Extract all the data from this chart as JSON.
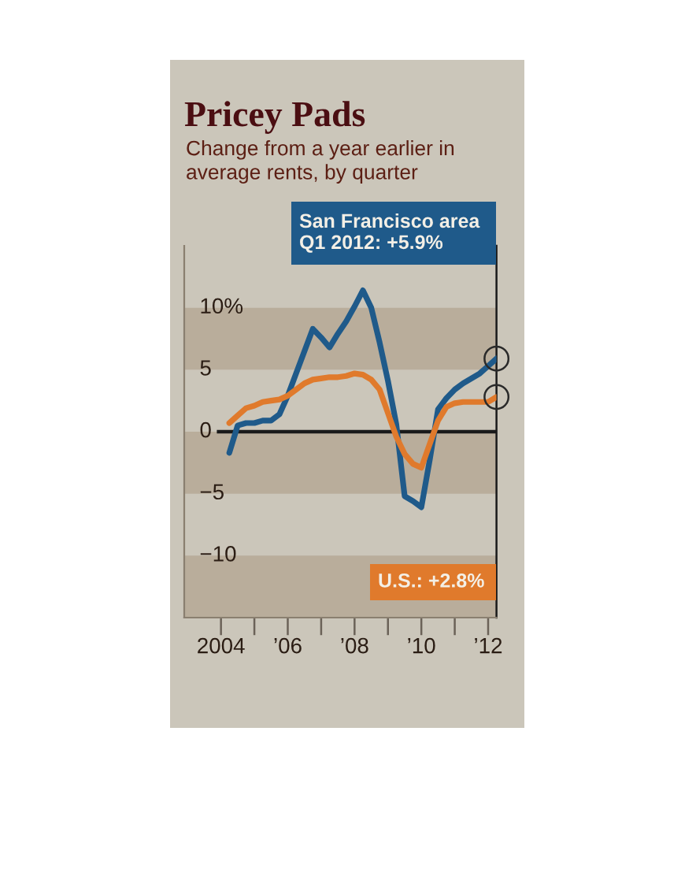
{
  "chart_data": {
    "type": "line",
    "title": "Pricey Pads",
    "subtitle": "Change from a year earlier in\naverage rents, by quarter",
    "x": [
      2004.25,
      2004.5,
      2004.75,
      2005,
      2005.25,
      2005.5,
      2005.75,
      2006,
      2006.25,
      2006.5,
      2006.75,
      2007,
      2007.25,
      2007.5,
      2007.75,
      2008,
      2008.25,
      2008.5,
      2008.75,
      2009,
      2009.25,
      2009.5,
      2009.75,
      2010,
      2010.25,
      2010.5,
      2010.75,
      2011,
      2011.25,
      2011.5,
      2011.75,
      2012,
      2012.25
    ],
    "series": [
      {
        "color": "#1f5a8a",
        "values": [
          -1.7,
          0.5,
          0.7,
          0.7,
          0.9,
          0.9,
          1.4,
          2.9,
          4.7,
          6.5,
          8.3,
          7.6,
          6.8,
          7.9,
          8.9,
          10.1,
          11.4,
          10.0,
          7.2,
          4.1,
          0.6,
          -5.2,
          -5.6,
          -6.1,
          -2.3,
          1.8,
          2.7,
          3.4,
          3.9,
          4.3,
          4.7,
          5.3,
          5.9
        ]
      },
      {
        "color": "#e07a2c",
        "values": [
          0.7,
          1.3,
          1.9,
          2.1,
          2.4,
          2.5,
          2.6,
          2.9,
          3.4,
          3.9,
          4.2,
          4.3,
          4.4,
          4.4,
          4.5,
          4.7,
          4.6,
          4.2,
          3.4,
          1.5,
          -0.4,
          -1.8,
          -2.6,
          -2.9,
          -1.0,
          0.9,
          2.0,
          2.3,
          2.4,
          2.4,
          2.4,
          2.4,
          2.8
        ]
      },
      {
        "type": "scatter",
        "x": [
          2012.25,
          2012.25
        ],
        "color": "#2a2a2a",
        "marker": "circle",
        "values": [
          5.9,
          2.8
        ]
      }
    ],
    "xlim": [
      2002.9,
      2012.25
    ],
    "xticks": [
      2004,
      {
        "value": 2005,
        "label": null
      },
      {
        "value": 2006,
        "label": "’06"
      },
      {
        "value": 2007,
        "label": null
      },
      {
        "value": 2008,
        "label": "’08"
      },
      {
        "value": 2009,
        "label": null
      },
      {
        "value": 2010,
        "label": "’10"
      },
      {
        "value": 2011,
        "label": null
      },
      {
        "value": 2012,
        "label": "’12"
      }
    ],
    "ylim": [
      -15,
      15
    ],
    "yticks": [
      {
        "value": 10,
        "label": "10%"
      },
      5,
      0,
      {
        "value": -5,
        "label": "−5"
      },
      {
        "value": -10,
        "label": "−10"
      }
    ],
    "ref_lines": [
      {
        "axis": "y",
        "value": 0,
        "color": "#1a1a1a"
      }
    ],
    "bands": [
      {
        "axis": "y",
        "from": 5,
        "to": 10,
        "color": "#b9ad9b"
      },
      {
        "axis": "y",
        "from": -5,
        "to": 0,
        "color": "#b9ad9b"
      },
      {
        "axis": "y",
        "from": -15,
        "to": -10,
        "color": "#b9ad9b"
      }
    ],
    "annotations": [
      "San Francisco area\nQ1 2012: +5.9%",
      "U.S.: +2.8%"
    ]
  }
}
